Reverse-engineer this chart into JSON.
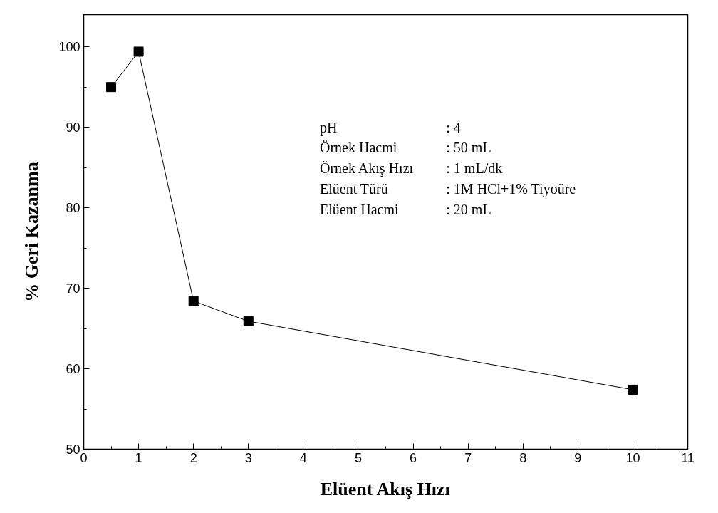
{
  "chart_data": {
    "type": "line",
    "xlabel": "Elüent Akış Hızı",
    "ylabel": "% Geri Kazanma",
    "x": [
      0.5,
      1,
      2,
      3,
      10
    ],
    "series": [
      {
        "color": "#000000",
        "values": [
          95.0,
          99.4,
          68.4,
          65.9,
          57.4
        ]
      }
    ],
    "xlim": [
      0,
      11
    ],
    "ylim": [
      50,
      104
    ],
    "xticks": [
      0,
      1,
      2,
      3,
      4,
      5,
      6,
      7,
      8,
      9,
      10,
      11
    ],
    "yticks": [
      50,
      60,
      70,
      80,
      90,
      100
    ],
    "marker": "square",
    "line_style": "solid",
    "grid": false,
    "annotations": [
      "pH : 4",
      "Örnek Hacmi : 50 mL",
      "Örnek Akış Hızı : 1 mL/dk",
      "Elüent Türü : 1M HCl+1% Tiyoüre",
      "Elüent Hacmi : 20 mL"
    ]
  }
}
